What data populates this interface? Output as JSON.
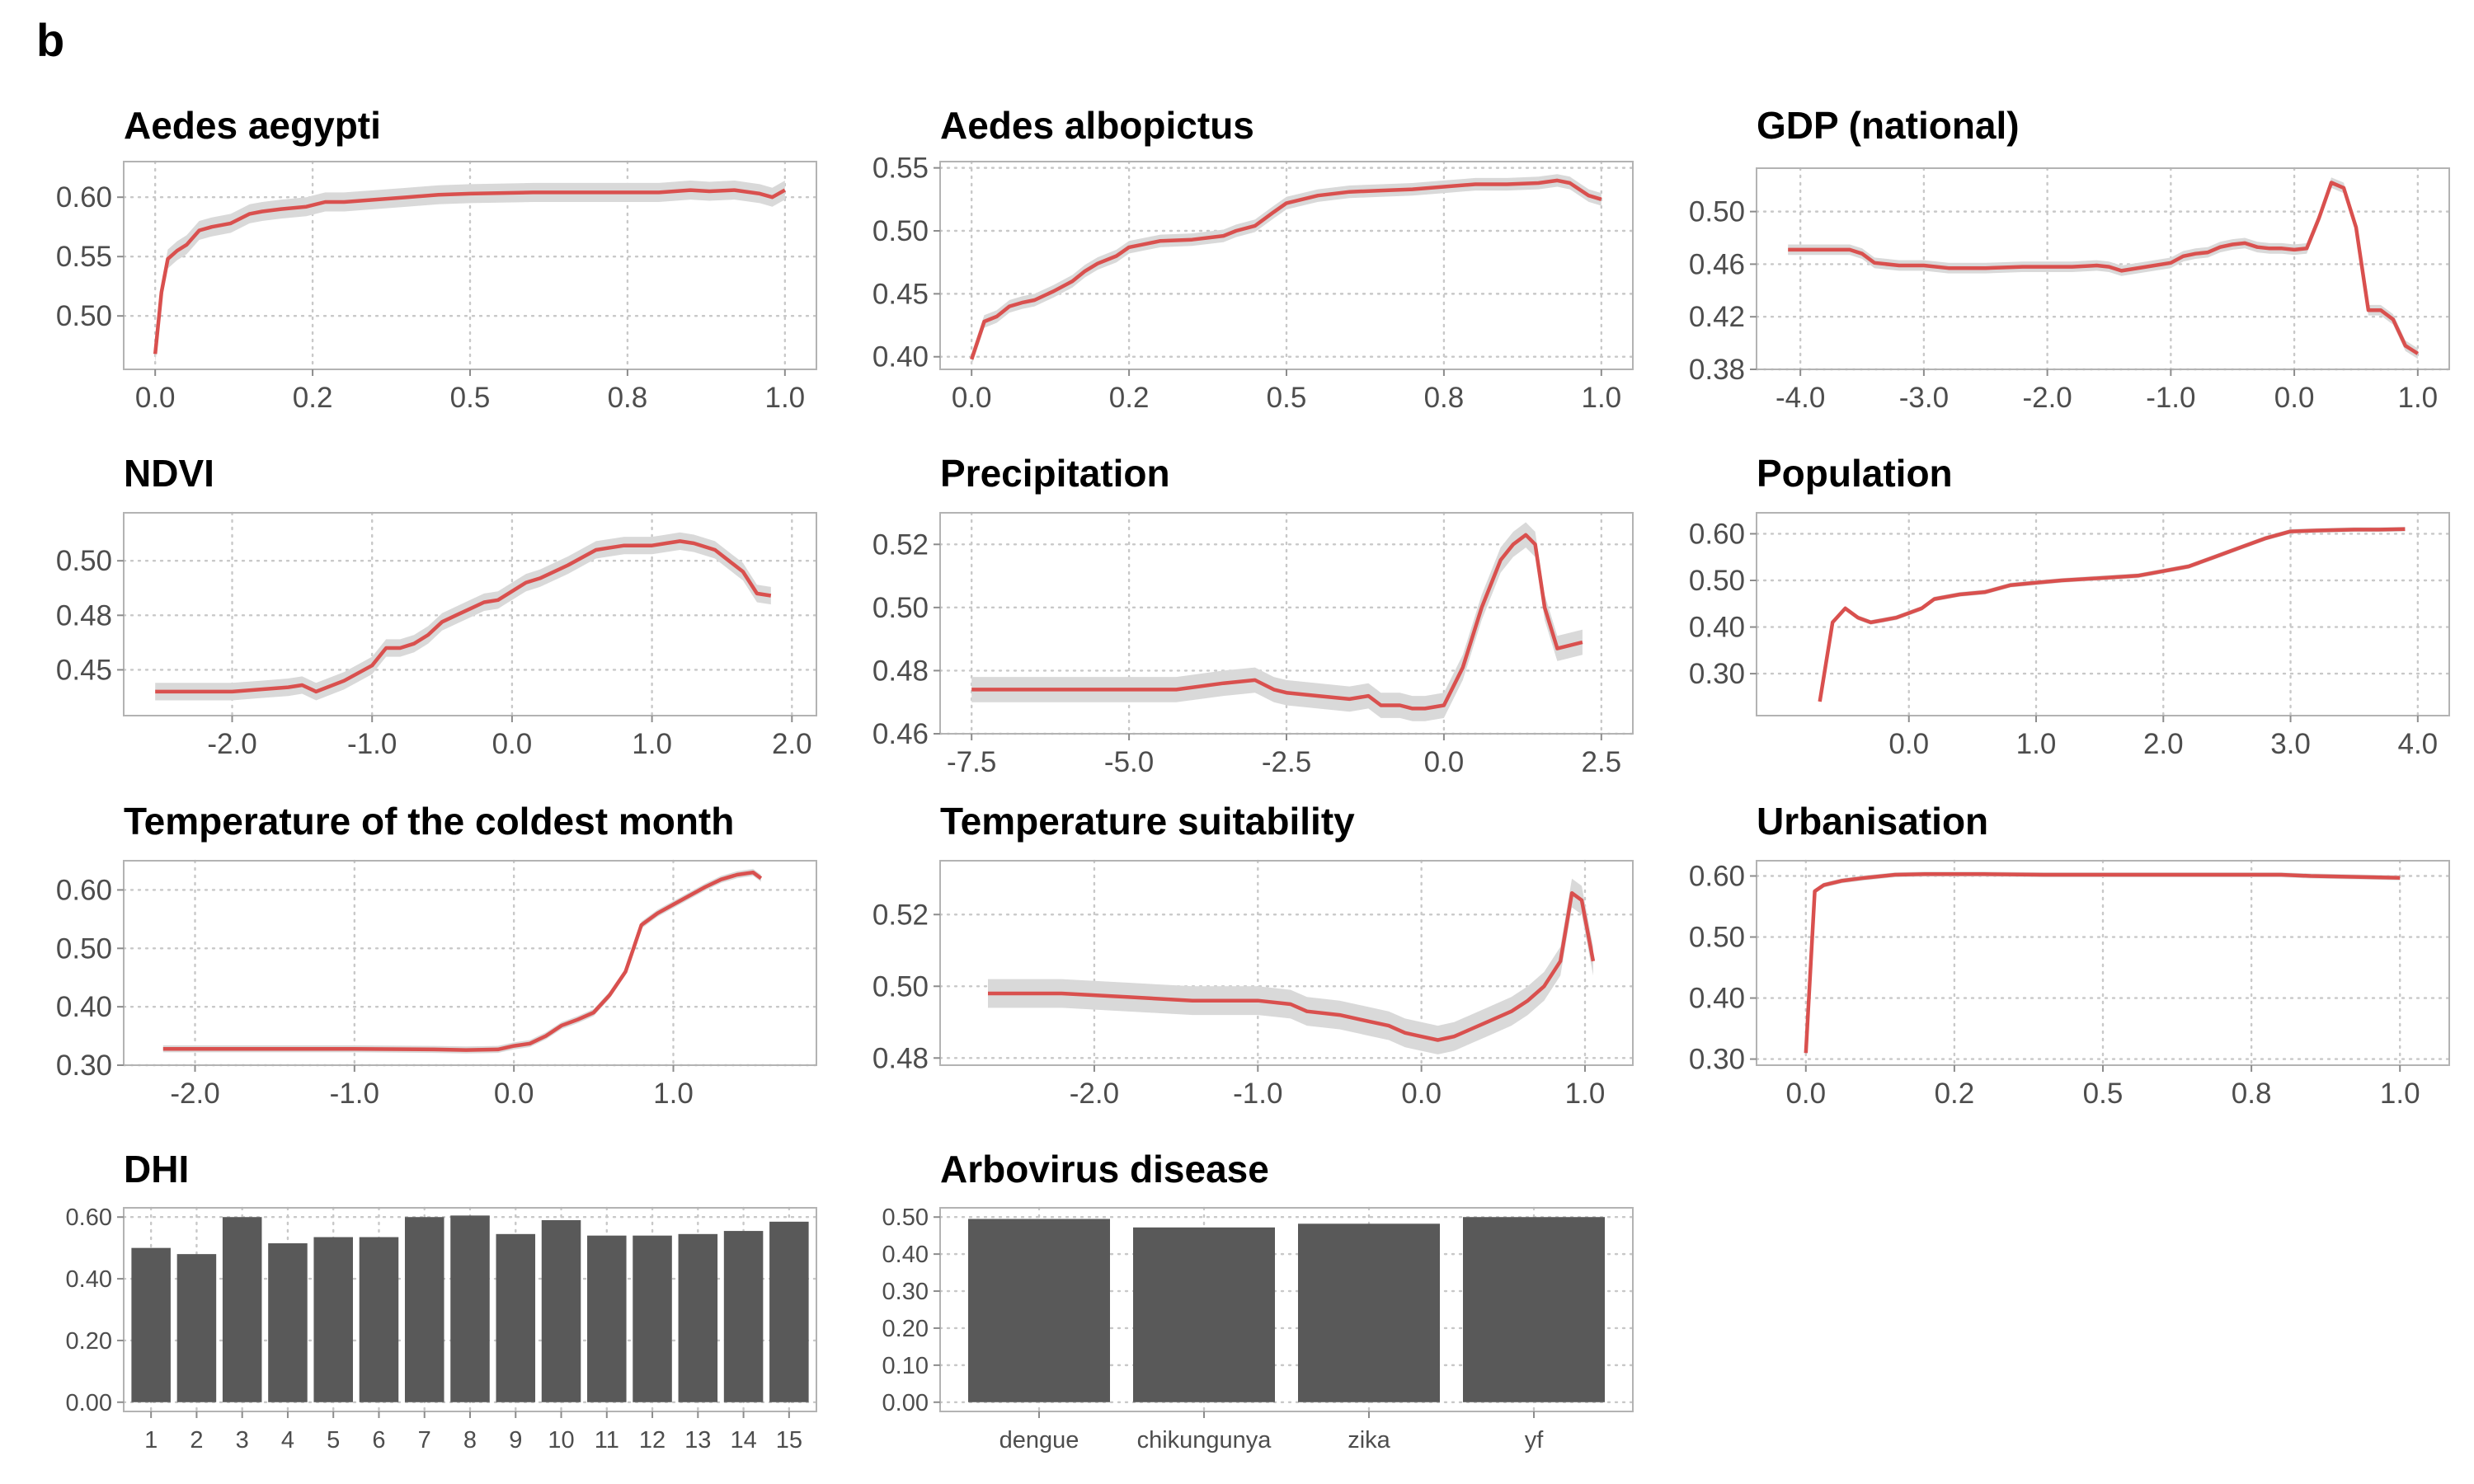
{
  "panel_label": "b",
  "chart_data": [
    {
      "id": "aedes-aegypti",
      "type": "line",
      "title": "Aedes aegypti",
      "xlim": [
        0,
        1
      ],
      "ylim": [
        0.455,
        0.63
      ],
      "xticks": [
        0,
        0.25,
        0.5,
        0.75,
        1
      ],
      "xticklabels": [
        "0.0",
        "0.2",
        "0.5",
        "0.8",
        "1.0"
      ],
      "yticks": [
        0.5,
        0.55,
        0.6
      ],
      "yticklabels": [
        "0.50",
        "0.55",
        "0.60"
      ],
      "ci": 0.008,
      "x": [
        0,
        0.01,
        0.02,
        0.035,
        0.05,
        0.07,
        0.09,
        0.12,
        0.15,
        0.17,
        0.2,
        0.24,
        0.27,
        0.3,
        0.35,
        0.4,
        0.45,
        0.5,
        0.6,
        0.7,
        0.8,
        0.85,
        0.88,
        0.92,
        0.96,
        0.98,
        1.0
      ],
      "y": [
        0.468,
        0.52,
        0.548,
        0.555,
        0.56,
        0.572,
        0.575,
        0.578,
        0.586,
        0.588,
        0.59,
        0.592,
        0.596,
        0.596,
        0.598,
        0.6,
        0.602,
        0.603,
        0.604,
        0.604,
        0.604,
        0.606,
        0.605,
        0.606,
        0.603,
        0.6,
        0.606
      ]
    },
    {
      "id": "aedes-albopictus",
      "type": "line",
      "title": "Aedes albopictus",
      "xlim": [
        0,
        1
      ],
      "ylim": [
        0.39,
        0.555
      ],
      "xticks": [
        0,
        0.25,
        0.5,
        0.75,
        1
      ],
      "xticklabels": [
        "0.0",
        "0.2",
        "0.5",
        "0.8",
        "1.0"
      ],
      "yticks": [
        0.4,
        0.45,
        0.5,
        0.55
      ],
      "yticklabels": [
        "0.40",
        "0.45",
        "0.50",
        "0.55"
      ],
      "ci": 0.005,
      "x": [
        0,
        0.02,
        0.04,
        0.06,
        0.08,
        0.1,
        0.13,
        0.16,
        0.18,
        0.2,
        0.23,
        0.25,
        0.28,
        0.3,
        0.35,
        0.4,
        0.42,
        0.45,
        0.48,
        0.5,
        0.55,
        0.6,
        0.65,
        0.7,
        0.75,
        0.8,
        0.85,
        0.9,
        0.93,
        0.95,
        0.98,
        1.0
      ],
      "y": [
        0.398,
        0.428,
        0.432,
        0.44,
        0.443,
        0.445,
        0.452,
        0.46,
        0.468,
        0.474,
        0.48,
        0.487,
        0.49,
        0.492,
        0.493,
        0.496,
        0.5,
        0.504,
        0.515,
        0.522,
        0.528,
        0.531,
        0.532,
        0.533,
        0.535,
        0.537,
        0.537,
        0.538,
        0.54,
        0.538,
        0.528,
        0.525
      ]
    },
    {
      "id": "gdp-national",
      "type": "line",
      "title": "GDP (national)",
      "xlim": [
        -4.1,
        1.0
      ],
      "ylim": [
        0.38,
        0.533
      ],
      "xticks": [
        -4,
        -3,
        -2,
        -1,
        0,
        1
      ],
      "xticklabels": [
        "-4.0",
        "-3.0",
        "-2.0",
        "-1.0",
        "0.0",
        "1.0"
      ],
      "yticks": [
        0.38,
        0.42,
        0.46,
        0.5
      ],
      "yticklabels": [
        "0.38",
        "0.42",
        "0.46",
        "0.50"
      ],
      "ci": 0.004,
      "x": [
        -4.1,
        -3.6,
        -3.5,
        -3.4,
        -3.2,
        -3.0,
        -2.8,
        -2.5,
        -2.2,
        -2.0,
        -1.8,
        -1.6,
        -1.5,
        -1.4,
        -1.2,
        -1.0,
        -0.9,
        -0.8,
        -0.7,
        -0.6,
        -0.5,
        -0.4,
        -0.3,
        -0.2,
        -0.1,
        0.0,
        0.1,
        0.2,
        0.3,
        0.4,
        0.5,
        0.6,
        0.7,
        0.8,
        0.9,
        1.0
      ],
      "y": [
        0.471,
        0.471,
        0.468,
        0.461,
        0.459,
        0.459,
        0.457,
        0.457,
        0.458,
        0.458,
        0.458,
        0.459,
        0.458,
        0.455,
        0.458,
        0.461,
        0.466,
        0.468,
        0.469,
        0.473,
        0.475,
        0.476,
        0.473,
        0.472,
        0.472,
        0.471,
        0.472,
        0.495,
        0.522,
        0.518,
        0.488,
        0.425,
        0.425,
        0.418,
        0.398,
        0.392
      ]
    },
    {
      "id": "ndvi",
      "type": "line",
      "title": "NDVI",
      "xlim": [
        -2.55,
        1.95
      ],
      "ylim": [
        0.429,
        0.522
      ],
      "xticks": [
        -2,
        -1,
        0,
        1,
        2
      ],
      "xticklabels": [
        "-2.0",
        "-1.0",
        "0.0",
        "1.0",
        "2.0"
      ],
      "yticks": [
        0.45,
        0.475,
        0.5
      ],
      "yticklabels": [
        "0.45",
        "0.48",
        "0.50"
      ],
      "ci": 0.004,
      "x": [
        -2.55,
        -2.3,
        -2.0,
        -1.8,
        -1.6,
        -1.5,
        -1.4,
        -1.2,
        -1.0,
        -0.9,
        -0.8,
        -0.7,
        -0.6,
        -0.5,
        -0.4,
        -0.3,
        -0.2,
        -0.1,
        0.0,
        0.1,
        0.2,
        0.4,
        0.6,
        0.7,
        0.8,
        1.0,
        1.1,
        1.2,
        1.3,
        1.45,
        1.55,
        1.65,
        1.75,
        1.85
      ],
      "y": [
        0.44,
        0.44,
        0.44,
        0.441,
        0.442,
        0.443,
        0.44,
        0.445,
        0.452,
        0.46,
        0.46,
        0.462,
        0.466,
        0.472,
        0.475,
        0.478,
        0.481,
        0.482,
        0.486,
        0.49,
        0.492,
        0.498,
        0.505,
        0.506,
        0.507,
        0.507,
        0.508,
        0.509,
        0.508,
        0.505,
        0.5,
        0.495,
        0.485,
        0.484
      ]
    },
    {
      "id": "precipitation",
      "type": "line",
      "title": "Precipitation",
      "xlim": [
        -7.5,
        2.5
      ],
      "ylim": [
        0.46,
        0.53
      ],
      "xticks": [
        -7.5,
        -5,
        -2.5,
        0,
        2.5
      ],
      "xticklabels": [
        "-7.5",
        "-5.0",
        "-2.5",
        "0.0",
        "2.5"
      ],
      "yticks": [
        0.46,
        0.48,
        0.5,
        0.52
      ],
      "yticklabels": [
        "0.46",
        "0.48",
        "0.50",
        "0.52"
      ],
      "ci": 0.004,
      "x": [
        -7.5,
        -6.5,
        -5.5,
        -4.5,
        -4.25,
        -3.5,
        -3.0,
        -2.7,
        -2.5,
        -2.0,
        -1.5,
        -1.2,
        -1.0,
        -0.7,
        -0.5,
        -0.3,
        0.0,
        0.3,
        0.6,
        0.9,
        1.1,
        1.3,
        1.45,
        1.6,
        1.8,
        2.0,
        2.2
      ],
      "y": [
        0.474,
        0.474,
        0.474,
        0.474,
        0.474,
        0.476,
        0.477,
        0.474,
        0.473,
        0.472,
        0.471,
        0.472,
        0.469,
        0.469,
        0.468,
        0.468,
        0.469,
        0.481,
        0.5,
        0.515,
        0.52,
        0.523,
        0.52,
        0.5,
        0.487,
        0.488,
        0.489
      ]
    },
    {
      "id": "population",
      "type": "line",
      "title": "Population",
      "xlim": [
        -0.95,
        4.0
      ],
      "ylim": [
        0.21,
        0.645
      ],
      "xticks": [
        0,
        1,
        2,
        3,
        4
      ],
      "xticklabels": [
        "0.0",
        "1.0",
        "2.0",
        "3.0",
        "4.0"
      ],
      "yticks": [
        0.3,
        0.4,
        0.5,
        0.6
      ],
      "yticklabels": [
        "0.30",
        "0.40",
        "0.50",
        "0.60"
      ],
      "ci": 0.005,
      "x": [
        -0.7,
        -0.6,
        -0.5,
        -0.4,
        -0.3,
        -0.2,
        -0.1,
        0.0,
        0.1,
        0.2,
        0.4,
        0.6,
        0.8,
        1.0,
        1.2,
        1.5,
        1.8,
        2.0,
        2.2,
        2.4,
        2.6,
        2.8,
        3.0,
        3.2,
        3.5,
        3.7,
        3.9
      ],
      "y": [
        0.24,
        0.41,
        0.44,
        0.42,
        0.41,
        0.415,
        0.42,
        0.43,
        0.44,
        0.46,
        0.47,
        0.475,
        0.49,
        0.495,
        0.5,
        0.505,
        0.51,
        0.52,
        0.53,
        0.55,
        0.57,
        0.59,
        0.605,
        0.607,
        0.609,
        0.609,
        0.61
      ]
    },
    {
      "id": "temp-coldest-month",
      "type": "line",
      "title": "Temperature of the coldest month",
      "xlim": [
        -2.25,
        1.7
      ],
      "ylim": [
        0.3,
        0.65
      ],
      "xticks": [
        -2,
        -1,
        0,
        1
      ],
      "xticklabels": [
        "-2.0",
        "-1.0",
        "0.0",
        "1.0"
      ],
      "yticks": [
        0.3,
        0.4,
        0.5,
        0.6
      ],
      "yticklabels": [
        "0.30",
        "0.40",
        "0.50",
        "0.60"
      ],
      "ci": 0.006,
      "x": [
        -2.2,
        -1.5,
        -1.0,
        -0.5,
        -0.3,
        -0.1,
        0.0,
        0.1,
        0.2,
        0.3,
        0.4,
        0.5,
        0.6,
        0.7,
        0.75,
        0.8,
        0.9,
        1.0,
        1.1,
        1.2,
        1.3,
        1.4,
        1.5,
        1.55
      ],
      "y": [
        0.328,
        0.328,
        0.328,
        0.327,
        0.326,
        0.327,
        0.333,
        0.337,
        0.35,
        0.368,
        0.378,
        0.39,
        0.42,
        0.46,
        0.5,
        0.54,
        0.56,
        0.575,
        0.59,
        0.605,
        0.618,
        0.626,
        0.63,
        0.62
      ]
    },
    {
      "id": "temp-suitability",
      "type": "line",
      "title": "Temperature suitability",
      "xlim": [
        -2.75,
        1.1
      ],
      "ylim": [
        0.478,
        0.535
      ],
      "xticks": [
        -2,
        -1,
        0,
        1
      ],
      "xticklabels": [
        "-2.0",
        "-1.0",
        "0.0",
        "1.0"
      ],
      "yticks": [
        0.48,
        0.5,
        0.52
      ],
      "yticklabels": [
        "0.48",
        "0.50",
        "0.52"
      ],
      "ci": 0.004,
      "x": [
        -2.65,
        -2.2,
        -1.8,
        -1.4,
        -1.0,
        -0.8,
        -0.7,
        -0.5,
        -0.3,
        -0.2,
        -0.1,
        0.0,
        0.1,
        0.2,
        0.3,
        0.4,
        0.55,
        0.65,
        0.75,
        0.85,
        0.92,
        0.98,
        1.05
      ],
      "y": [
        0.498,
        0.498,
        0.497,
        0.496,
        0.496,
        0.495,
        0.493,
        0.492,
        0.49,
        0.489,
        0.487,
        0.486,
        0.485,
        0.486,
        0.488,
        0.49,
        0.493,
        0.496,
        0.5,
        0.507,
        0.526,
        0.524,
        0.507
      ]
    },
    {
      "id": "urbanisation",
      "type": "line",
      "title": "Urbanisation",
      "xlim": [
        -0.03,
        1.03
      ],
      "ylim": [
        0.29,
        0.625
      ],
      "xticks": [
        0,
        0.25,
        0.5,
        0.75,
        1
      ],
      "xticklabels": [
        "0.0",
        "0.2",
        "0.5",
        "0.8",
        "1.0"
      ],
      "yticks": [
        0.3,
        0.4,
        0.5,
        0.6
      ],
      "yticklabels": [
        "0.30",
        "0.40",
        "0.50",
        "0.60"
      ],
      "ci": 0.004,
      "x": [
        0,
        0.015,
        0.03,
        0.06,
        0.1,
        0.15,
        0.2,
        0.3,
        0.4,
        0.5,
        0.6,
        0.7,
        0.8,
        0.85,
        0.9,
        0.95,
        1.0
      ],
      "y": [
        0.31,
        0.575,
        0.585,
        0.592,
        0.597,
        0.602,
        0.603,
        0.603,
        0.602,
        0.602,
        0.602,
        0.602,
        0.602,
        0.6,
        0.599,
        0.598,
        0.597
      ]
    },
    {
      "id": "dhi",
      "type": "bar",
      "title": "DHI",
      "categories": [
        "1",
        "2",
        "3",
        "4",
        "5",
        "6",
        "7",
        "8",
        "9",
        "10",
        "11",
        "12",
        "13",
        "14",
        "15"
      ],
      "values": [
        0.5,
        0.48,
        0.6,
        0.515,
        0.535,
        0.535,
        0.6,
        0.605,
        0.545,
        0.59,
        0.54,
        0.54,
        0.545,
        0.555,
        0.585
      ],
      "ylim": [
        -0.03,
        0.63
      ],
      "yticks": [
        0,
        0.2,
        0.4,
        0.6
      ],
      "yticklabels": [
        "0.00",
        "0.20",
        "0.40",
        "0.60"
      ]
    },
    {
      "id": "arbovirus-disease",
      "type": "bar",
      "title": "Arbovirus disease",
      "categories": [
        "dengue",
        "chikungunya",
        "zika",
        "yf"
      ],
      "values": [
        0.495,
        0.472,
        0.482,
        0.5
      ],
      "ylim": [
        -0.025,
        0.525
      ],
      "yticks": [
        0,
        0.1,
        0.2,
        0.3,
        0.4,
        0.5
      ],
      "yticklabels": [
        "0.00",
        "0.10",
        "0.20",
        "0.30",
        "0.40",
        "0.50"
      ]
    }
  ]
}
